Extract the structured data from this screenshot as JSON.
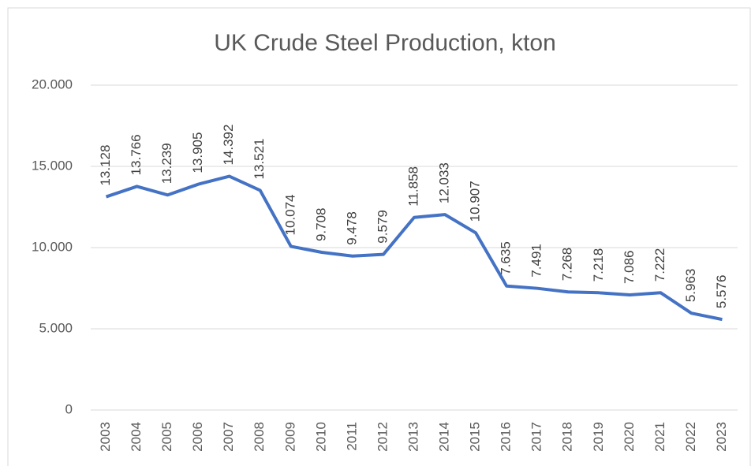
{
  "chart_data": {
    "type": "line",
    "title": "UK Crude Steel Production, kton",
    "categories": [
      "2003",
      "2004",
      "2005",
      "2006",
      "2007",
      "2008",
      "2009",
      "2010",
      "2011",
      "2012",
      "2013",
      "2014",
      "2015",
      "2016",
      "2017",
      "2018",
      "2019",
      "2020",
      "2021",
      "2022",
      "2023"
    ],
    "series": [
      {
        "name": "UK Crude Steel Production",
        "color": "#4472c4",
        "values": [
          13128,
          13766,
          13239,
          13905,
          14392,
          13521,
          10074,
          9708,
          9478,
          9579,
          11858,
          12033,
          10907,
          7635,
          7491,
          7268,
          7218,
          7086,
          7222,
          5963,
          5576
        ],
        "value_labels": [
          "13.128",
          "13.766",
          "13.239",
          "13.905",
          "14.392",
          "13.521",
          "10.074",
          "9.708",
          "9.478",
          "9.579",
          "11.858",
          "12.033",
          "10.907",
          "7.635",
          "7.491",
          "7.268",
          "7.218",
          "7.086",
          "7.222",
          "5.963",
          "5.576"
        ]
      }
    ],
    "ylim": [
      0,
      20000
    ],
    "yticks": [
      0,
      {
        "value": 5000,
        "label": "5.000"
      },
      {
        "value": 10000,
        "label": "10.000"
      },
      {
        "value": 15000,
        "label": "15.000"
      },
      {
        "value": 20000,
        "label": "20.000"
      }
    ],
    "grid": true
  }
}
